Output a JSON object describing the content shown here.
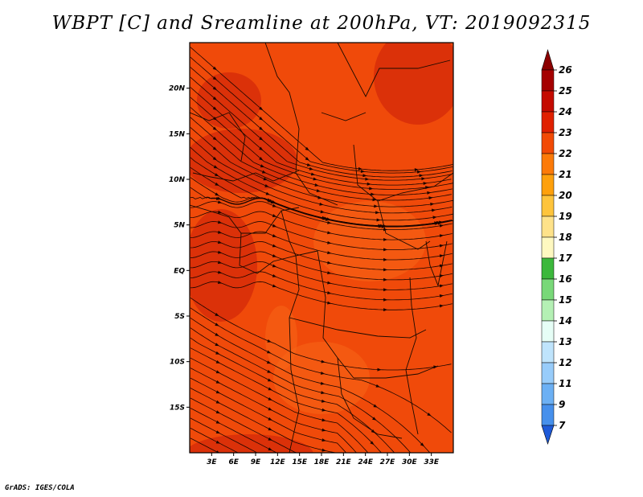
{
  "title": "WBPT [C] and Sreamline at 200hPa, VT: 2019092315",
  "credit": "GrADS: IGES/COLA",
  "map": {
    "lon_range": [
      0,
      36
    ],
    "lat_range": [
      -20,
      25
    ],
    "lat_ticks": [
      {
        "value": 20,
        "label": "20N"
      },
      {
        "value": 15,
        "label": "15N"
      },
      {
        "value": 10,
        "label": "10N"
      },
      {
        "value": 5,
        "label": "5N"
      },
      {
        "value": 0,
        "label": "EQ"
      },
      {
        "value": -5,
        "label": "5S"
      },
      {
        "value": -10,
        "label": "10S"
      },
      {
        "value": -15,
        "label": "15S"
      }
    ],
    "lon_ticks": [
      {
        "value": 3,
        "label": "3E"
      },
      {
        "value": 6,
        "label": "6E"
      },
      {
        "value": 9,
        "label": "9E"
      },
      {
        "value": 12,
        "label": "12E"
      },
      {
        "value": 15,
        "label": "15E"
      },
      {
        "value": 18,
        "label": "18E"
      },
      {
        "value": 21,
        "label": "21E"
      },
      {
        "value": 24,
        "label": "24E"
      },
      {
        "value": 27,
        "label": "27E"
      },
      {
        "value": 30,
        "label": "30E"
      },
      {
        "value": 33,
        "label": "33E"
      }
    ],
    "field_colors": {
      "base": "#f04a0a",
      "warm": "#d42a0a",
      "cool": "#f86818"
    }
  },
  "colorbar": {
    "levels": [
      {
        "label": "26",
        "color": "#a50000"
      },
      {
        "label": "25",
        "color": "#c40a00"
      },
      {
        "label": "24",
        "color": "#e02000"
      },
      {
        "label": "23",
        "color": "#f24a05"
      },
      {
        "label": "22",
        "color": "#fc7a08"
      },
      {
        "label": "21",
        "color": "#fea00c"
      },
      {
        "label": "20",
        "color": "#fec43c"
      },
      {
        "label": "19",
        "color": "#fee28a"
      },
      {
        "label": "18",
        "color": "#fef8c0"
      },
      {
        "label": "17",
        "color": "#3cb83c"
      },
      {
        "label": "16",
        "color": "#78d878"
      },
      {
        "label": "15",
        "color": "#b4f0b4"
      },
      {
        "label": "14",
        "color": "#e6fef6"
      },
      {
        "label": "13",
        "color": "#bfe4fc"
      },
      {
        "label": "12",
        "color": "#98ccfa"
      },
      {
        "label": "11",
        "color": "#6cb0f4"
      },
      {
        "label": "9",
        "color": "#4690ec"
      },
      {
        "label": "7",
        "color": "#2c6ee0"
      }
    ],
    "top_arrow_color": "#8c0000",
    "bottom_arrow_color": "#1e5ad8"
  }
}
